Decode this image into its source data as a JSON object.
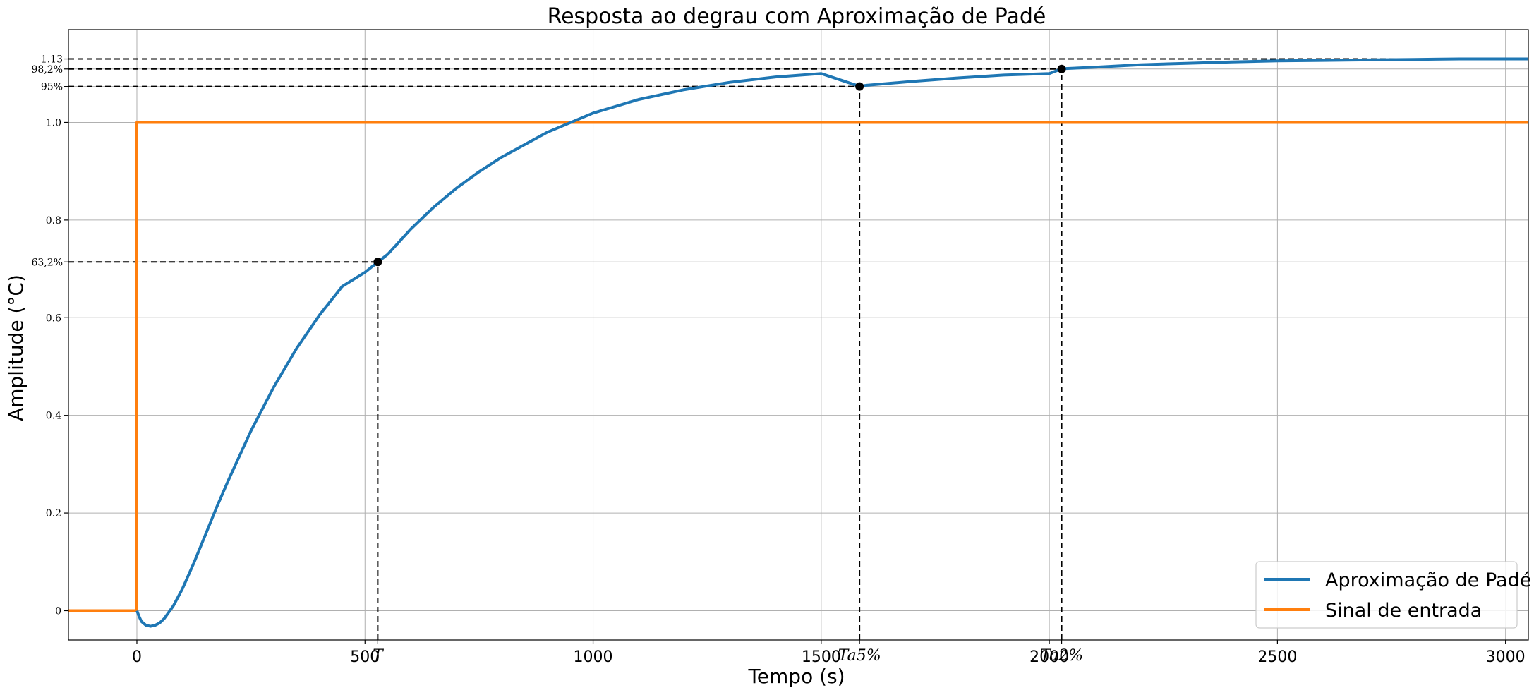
{
  "chart_data": {
    "type": "line",
    "title": "Resposta ao degrau com Aproximação de Padé",
    "xlabel": "Tempo (s)",
    "ylabel": "Amplitude (°C)",
    "xlim": [
      -150,
      3050
    ],
    "ylim": [
      -0.06,
      1.19
    ],
    "grid": true,
    "legend_position": "bottom-right",
    "x_ticks": [
      {
        "value": 0,
        "label": "0"
      },
      {
        "value": 500,
        "label": "500"
      },
      {
        "value": 1000,
        "label": "1000"
      },
      {
        "value": 1500,
        "label": "1500"
      },
      {
        "value": 2000,
        "label": "2000"
      },
      {
        "value": 2500,
        "label": "2500"
      },
      {
        "value": 3000,
        "label": "3000"
      }
    ],
    "y_ticks": [
      {
        "value": 0,
        "label": "0"
      },
      {
        "value": 0.2,
        "label": "0.2"
      },
      {
        "value": 0.4,
        "label": "0.4"
      },
      {
        "value": 0.6,
        "label": "0.6"
      },
      {
        "value": 0.8,
        "label": "0.8"
      },
      {
        "value": 1.0,
        "label": "1.0"
      }
    ],
    "series": [
      {
        "name": "Aproximação de Padé",
        "color": "#1f77b4",
        "x": [
          0,
          5,
          10,
          20,
          30,
          40,
          50,
          60,
          80,
          100,
          125,
          150,
          175,
          200,
          250,
          300,
          350,
          400,
          450,
          500,
          528,
          550,
          600,
          650,
          700,
          750,
          800,
          900,
          1000,
          1100,
          1200,
          1300,
          1400,
          1500,
          1584,
          1600,
          1700,
          1800,
          1900,
          2000,
          2027,
          2100,
          2200,
          2300,
          2400,
          2500,
          2600,
          2700,
          2800,
          2900,
          3000,
          3050
        ],
        "y": [
          0.0,
          -0.012,
          -0.022,
          -0.03,
          -0.032,
          -0.03,
          -0.025,
          -0.016,
          0.01,
          0.045,
          0.098,
          0.155,
          0.212,
          0.266,
          0.368,
          0.458,
          0.537,
          0.605,
          0.664,
          0.693,
          0.714,
          0.73,
          0.781,
          0.826,
          0.865,
          0.899,
          0.929,
          0.98,
          1.019,
          1.047,
          1.067,
          1.082,
          1.093,
          1.1,
          1.074,
          1.076,
          1.084,
          1.091,
          1.097,
          1.1,
          1.11,
          1.113,
          1.118,
          1.121,
          1.124,
          1.126,
          1.127,
          1.128,
          1.129,
          1.13,
          1.13,
          1.13
        ]
      },
      {
        "name": "Sinal de entrada",
        "color": "#ff7f0e",
        "x": [
          -150,
          0,
          0,
          3050
        ],
        "y": [
          0,
          0,
          1,
          1
        ]
      }
    ],
    "reference_lines": {
      "horizontal": [
        {
          "y": 1.13,
          "label": "1.13",
          "x_end": 3050
        },
        {
          "y": 1.1094,
          "label": "98,2%",
          "x_end": 2027
        },
        {
          "y": 1.0735,
          "label": "95%",
          "x_end": 1584
        },
        {
          "y": 0.7142,
          "label": "63,2%",
          "x_end": 528
        }
      ],
      "vertical": [
        {
          "x": 528,
          "label": "T",
          "y_end": 0.7142
        },
        {
          "x": 1584,
          "label": "Ta5%",
          "y_end": 1.0735
        },
        {
          "x": 2027,
          "label": "Ta2%",
          "y_end": 1.1094
        }
      ]
    },
    "markers": [
      {
        "x": 528,
        "y": 0.7142
      },
      {
        "x": 1584,
        "y": 1.0735
      },
      {
        "x": 2027,
        "y": 1.1094
      }
    ],
    "grid_color": "#b0b0b0",
    "reference_color": "#000000"
  }
}
